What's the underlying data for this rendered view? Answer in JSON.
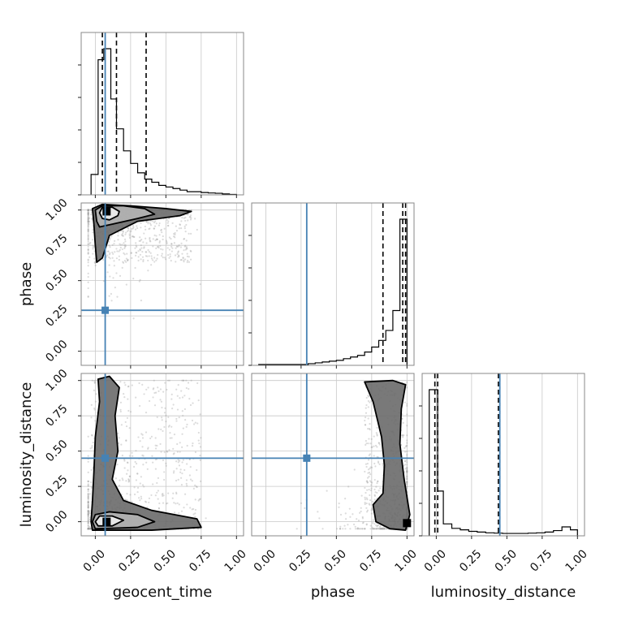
{
  "chart_data": {
    "type": "corner",
    "grid": true,
    "parameters": [
      "geocent_time",
      "phase",
      "luminosity_distance"
    ],
    "axis_labels": {
      "geocent_time": "geocent_time",
      "phase": "phase",
      "luminosity_distance": "luminosity_distance"
    },
    "tick_labels": [
      "0.00",
      "0.25",
      "0.50",
      "0.75",
      "1.00"
    ],
    "axis_range": [
      -0.1,
      1.05
    ],
    "truths": {
      "geocent_time": 0.07,
      "phase": 0.29,
      "luminosity_distance": 0.45
    },
    "quantiles": {
      "geocent_time": [
        0.05,
        0.15,
        0.36
      ],
      "phase": [
        0.83,
        0.97,
        0.99
      ],
      "luminosity_distance": [
        -0.01,
        0.01,
        0.44
      ]
    },
    "histograms": {
      "geocent_time": {
        "bin_edges": [
          -0.03,
          0.02,
          0.06,
          0.11,
          0.15,
          0.2,
          0.25,
          0.3,
          0.35,
          0.4,
          0.45,
          0.5,
          0.55,
          0.6,
          0.65,
          0.7,
          0.75,
          0.8,
          0.85,
          0.9,
          0.95,
          1.0
        ],
        "counts": [
          0.13,
          0.86,
          0.93,
          0.61,
          0.42,
          0.28,
          0.2,
          0.14,
          0.1,
          0.08,
          0.06,
          0.05,
          0.04,
          0.03,
          0.02,
          0.02,
          0.015,
          0.012,
          0.01,
          0.006,
          0.003
        ]
      },
      "phase": {
        "bin_edges": [
          -0.05,
          0.3,
          0.35,
          0.4,
          0.45,
          0.5,
          0.55,
          0.6,
          0.65,
          0.7,
          0.75,
          0.8,
          0.85,
          0.9,
          0.95,
          1.0
        ],
        "counts": [
          0.005,
          0.01,
          0.015,
          0.02,
          0.025,
          0.03,
          0.04,
          0.05,
          0.06,
          0.08,
          0.11,
          0.15,
          0.21,
          0.33,
          0.88
        ]
      },
      "luminosity_distance": {
        "bin_edges": [
          -0.05,
          0.01,
          0.05,
          0.11,
          0.17,
          0.23,
          0.29,
          0.35,
          0.41,
          0.47,
          0.53,
          0.59,
          0.65,
          0.71,
          0.77,
          0.83,
          0.89,
          0.95,
          1.0
        ],
        "counts": [
          0.98,
          0.3,
          0.08,
          0.05,
          0.04,
          0.03,
          0.025,
          0.02,
          0.018,
          0.016,
          0.016,
          0.016,
          0.018,
          0.02,
          0.025,
          0.035,
          0.06,
          0.04
        ]
      }
    },
    "joint": {
      "phase_vs_geocent_time": {
        "peak": [
          0.08,
          0.99
        ],
        "contours": [
          [
            [
              0.05,
              0.94
            ],
            [
              0.1,
              0.93
            ],
            [
              0.16,
              0.96
            ],
            [
              0.17,
              0.99
            ],
            [
              0.12,
              1.02
            ],
            [
              0.05,
              1.02
            ],
            [
              0.03,
              0.98
            ],
            [
              0.05,
              0.94
            ]
          ],
          [
            [
              0.03,
              0.88
            ],
            [
              0.12,
              0.9
            ],
            [
              0.3,
              0.94
            ],
            [
              0.42,
              0.97
            ],
            [
              0.35,
              1.01
            ],
            [
              0.2,
              1.03
            ],
            [
              0.05,
              1.03
            ],
            [
              0.0,
              1.0
            ],
            [
              0.01,
              0.92
            ],
            [
              0.03,
              0.88
            ]
          ],
          [
            [
              0.01,
              0.63
            ],
            [
              0.05,
              0.66
            ],
            [
              0.1,
              0.82
            ],
            [
              0.3,
              0.92
            ],
            [
              0.6,
              0.96
            ],
            [
              0.68,
              0.99
            ],
            [
              0.5,
              1.01
            ],
            [
              0.25,
              1.03
            ],
            [
              0.05,
              1.04
            ],
            [
              -0.02,
              1.01
            ],
            [
              -0.01,
              0.9
            ],
            [
              0.0,
              0.75
            ],
            [
              0.01,
              0.63
            ]
          ]
        ]
      },
      "luminosity_distance_vs_geocent_time": {
        "peak": [
          0.08,
          0.0
        ],
        "contours": [
          [
            [
              0.02,
              -0.03
            ],
            [
              0.12,
              -0.03
            ],
            [
              0.2,
              0.01
            ],
            [
              0.12,
              0.04
            ],
            [
              0.03,
              0.04
            ],
            [
              0.0,
              0.0
            ],
            [
              0.02,
              -0.03
            ]
          ],
          [
            [
              0.0,
              -0.05
            ],
            [
              0.3,
              -0.04
            ],
            [
              0.42,
              0.0
            ],
            [
              0.3,
              0.05
            ],
            [
              0.1,
              0.07
            ],
            [
              0.0,
              0.05
            ],
            [
              -0.02,
              0.0
            ],
            [
              0.0,
              -0.05
            ]
          ],
          [
            [
              -0.02,
              -0.06
            ],
            [
              0.4,
              -0.06
            ],
            [
              0.75,
              -0.04
            ],
            [
              0.72,
              0.02
            ],
            [
              0.4,
              0.08
            ],
            [
              0.2,
              0.15
            ],
            [
              0.12,
              0.3
            ],
            [
              0.16,
              0.5
            ],
            [
              0.14,
              0.75
            ],
            [
              0.17,
              0.95
            ],
            [
              0.1,
              1.03
            ],
            [
              0.02,
              1.01
            ],
            [
              0.03,
              0.85
            ],
            [
              0.0,
              0.6
            ],
            [
              -0.01,
              0.35
            ],
            [
              -0.02,
              0.15
            ],
            [
              -0.03,
              0.0
            ],
            [
              -0.02,
              -0.06
            ]
          ]
        ]
      },
      "luminosity_distance_vs_phase": {
        "peak": [
          1.0,
          -0.01
        ],
        "contours": [
          [
            [
              0.7,
              0.99
            ],
            [
              0.9,
              1.0
            ],
            [
              0.99,
              0.97
            ],
            [
              0.96,
              0.8
            ],
            [
              0.95,
              0.55
            ],
            [
              0.98,
              0.3
            ],
            [
              1.02,
              0.05
            ],
            [
              0.99,
              -0.06
            ],
            [
              0.88,
              -0.05
            ],
            [
              0.78,
              0.0
            ],
            [
              0.76,
              0.12
            ],
            [
              0.83,
              0.2
            ],
            [
              0.84,
              0.4
            ],
            [
              0.82,
              0.6
            ],
            [
              0.76,
              0.85
            ],
            [
              0.7,
              0.99
            ]
          ]
        ]
      }
    }
  }
}
